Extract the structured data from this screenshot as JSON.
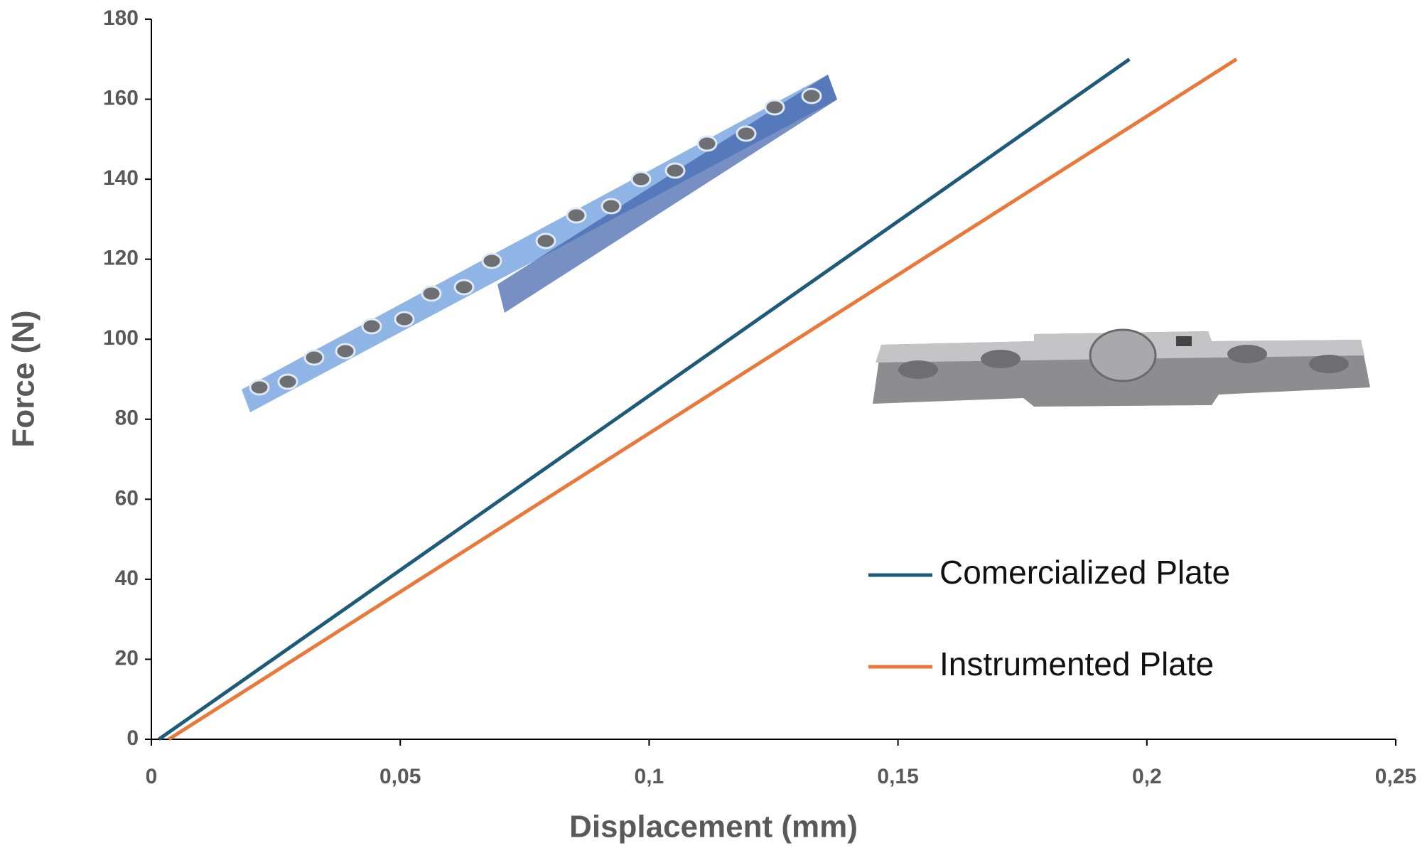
{
  "chart_data": {
    "type": "line",
    "xlabel": "Displacement (mm)",
    "ylabel": "Force (N)",
    "x": [
      0.0015,
      0.1965
    ],
    "series": [
      {
        "name": "Comercialized Plate",
        "color": "#1d5b79",
        "x": [
          0.0015,
          0.1965
        ],
        "values": [
          0,
          170
        ]
      },
      {
        "name": "Instrumented Plate",
        "color": "#e8793a",
        "x": [
          0.0035,
          0.218
        ],
        "values": [
          0,
          170
        ]
      }
    ],
    "xlim": [
      0,
      0.25
    ],
    "xticks": [
      0,
      {
        "value": 0.05,
        "label": "0,05"
      },
      {
        "value": 0.1,
        "label": "0,1"
      },
      {
        "value": 0.15,
        "label": "0,15"
      },
      {
        "value": 0.2,
        "label": "0,2"
      },
      {
        "value": 0.25,
        "label": "0,25"
      }
    ],
    "ylim": [
      0,
      180
    ],
    "yticks": [
      0,
      20,
      40,
      60,
      80,
      100,
      120,
      140,
      160,
      180
    ],
    "grid": false,
    "legend": "lower right"
  }
}
